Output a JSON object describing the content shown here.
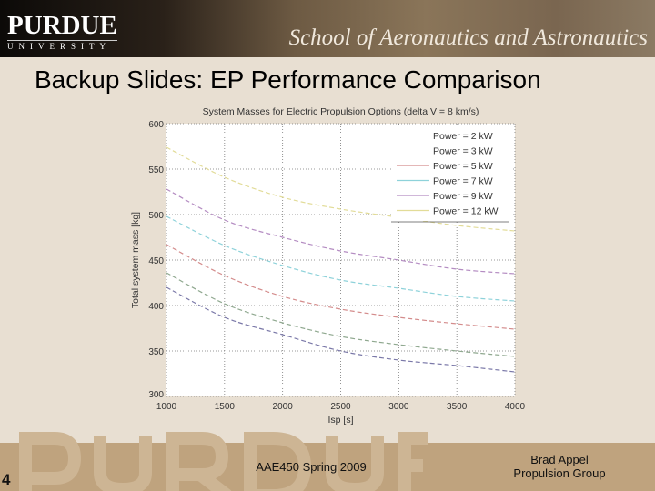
{
  "header": {
    "logo_main": "PURDUE",
    "logo_sub": "UNIVERSITY",
    "school": "School of Aeronautics and Astronautics"
  },
  "slide": {
    "title": "Backup Slides: EP Performance Comparison"
  },
  "footer": {
    "page_number": "4",
    "course": "AAE450 Spring 2009",
    "author": "Brad Appel",
    "group": "Propulsion Group",
    "watermark": "PURDUE"
  },
  "chart_data": {
    "type": "line",
    "title": "System Masses for Electric Propulsion Options (delta V = 8 km/s)",
    "xlabel": "Isp [s]",
    "ylabel": "Total system mass [kg]",
    "xlim": [
      1000,
      4000
    ],
    "ylim": [
      300,
      600
    ],
    "xticks": [
      1000,
      1500,
      2000,
      2500,
      3000,
      3500,
      4000
    ],
    "yticks": [
      300,
      350,
      400,
      450,
      500,
      550,
      600
    ],
    "grid": true,
    "legend_placement": "top-right",
    "x": [
      1000,
      1500,
      2000,
      2500,
      3000,
      3500,
      4000
    ],
    "series": [
      {
        "name": "Power =  2 kW",
        "color": "#7a78a8",
        "values": [
          420,
          387,
          368,
          350,
          340,
          334,
          327
        ]
      },
      {
        "name": "Power =  3 kW",
        "color": "#8fa88f",
        "values": [
          436,
          402,
          381,
          366,
          357,
          350,
          344
        ]
      },
      {
        "name": "Power =  5 kW",
        "color": "#d48c8c",
        "values": [
          467,
          433,
          410,
          396,
          387,
          380,
          374
        ]
      },
      {
        "name": "Power =  7 kW",
        "color": "#8ed2da",
        "values": [
          498,
          466,
          444,
          428,
          419,
          410,
          405
        ]
      },
      {
        "name": "Power =  9 kW",
        "color": "#b48cc2",
        "values": [
          528,
          494,
          475,
          460,
          450,
          440,
          435
        ]
      },
      {
        "name": "Power =  12 kW",
        "color": "#e2dc98",
        "values": [
          574,
          541,
          519,
          506,
          497,
          488,
          482
        ]
      }
    ]
  }
}
